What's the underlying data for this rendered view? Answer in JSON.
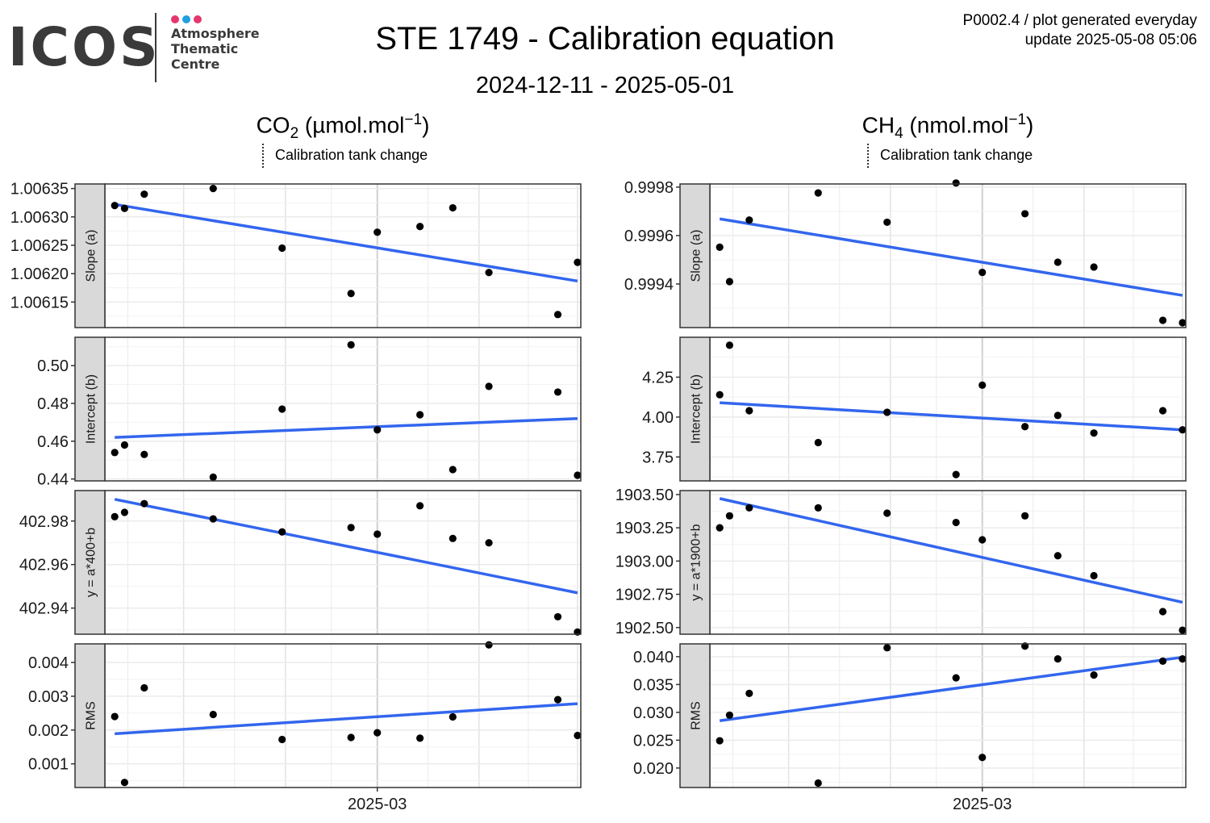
{
  "header": {
    "logo_text": "ICOS",
    "logo_subtext": [
      "Atmosphere",
      "Thematic",
      "Centre"
    ],
    "logo_dot_colors": [
      "#e5366e",
      "#1fa0e0",
      "#e5366e"
    ],
    "title": "STE 1749 - Calibration equation",
    "subtitle": "2024-12-11 - 2025-05-01",
    "meta_line1": "P0002.4 / plot generated everyday",
    "meta_line2": "update  2025-05-08 05:06"
  },
  "columns": [
    {
      "species": "CO",
      "species_sub": "2",
      "units_pre": " (µmol.mol",
      "units_sup": "−1",
      "units_post": ")",
      "legend": "Calibration tank change"
    },
    {
      "species": "CH",
      "species_sub": "4",
      "units_pre": " (nmol.mol",
      "units_sup": "−1",
      "units_post": ")",
      "legend": "Calibration tank change"
    }
  ],
  "colors": {
    "points": "#000000",
    "fit_line": "#3366ee",
    "strip_bg": "#d9d9d9",
    "grid": "#ebebeb",
    "panel_border": "#333333"
  },
  "chart_data": [
    {
      "type": "scatter",
      "gas": "CO2",
      "x_axis": {
        "tick_labels": [
          "2025-03"
        ],
        "tick_values": [
          "2025-03-01"
        ],
        "xlim": [
          "2024-12-08",
          "2025-05-02"
        ]
      },
      "panels": [
        {
          "label": "Slope (a)",
          "yticks": [
            1.00615,
            1.0062,
            1.00625,
            1.0063,
            1.00635
          ],
          "ylim": [
            1.006105,
            1.006358
          ],
          "points": [
            [
              "2024-12-11",
              1.00632
            ],
            [
              "2024-12-14",
              1.006315
            ],
            [
              "2024-12-20",
              1.00634
            ],
            [
              "2025-01-10",
              1.00635
            ],
            [
              "2025-01-31",
              1.006245
            ],
            [
              "2025-02-21",
              1.006165
            ],
            [
              "2025-03-14",
              1.006283
            ],
            [
              "2025-03-01",
              1.006273
            ],
            [
              "2025-03-24",
              1.006316
            ],
            [
              "2025-04-04",
              1.006202
            ],
            [
              "2025-04-25",
              1.006128
            ],
            [
              "2025-05-01",
              1.00622
            ]
          ],
          "fit": [
            [
              "2024-12-11",
              1.006322
            ],
            [
              "2025-05-01",
              1.006187
            ]
          ]
        },
        {
          "label": "Intercept (b)",
          "yticks": [
            0.44,
            0.46,
            0.48,
            0.5
          ],
          "ylim": [
            0.439,
            0.515
          ],
          "points": [
            [
              "2024-12-11",
              0.454
            ],
            [
              "2024-12-14",
              0.458
            ],
            [
              "2024-12-20",
              0.453
            ],
            [
              "2025-01-10",
              0.441
            ],
            [
              "2025-01-31",
              0.477
            ],
            [
              "2025-02-21",
              0.511
            ],
            [
              "2025-03-14",
              0.474
            ],
            [
              "2025-03-01",
              0.466
            ],
            [
              "2025-03-24",
              0.445
            ],
            [
              "2025-04-04",
              0.489
            ],
            [
              "2025-04-25",
              0.486
            ],
            [
              "2025-05-01",
              0.442
            ]
          ],
          "fit": [
            [
              "2024-12-11",
              0.462
            ],
            [
              "2025-05-01",
              0.472
            ]
          ]
        },
        {
          "label": "y = a*400+b",
          "yticks": [
            402.94,
            402.96,
            402.98
          ],
          "ylim": [
            402.928,
            402.994
          ],
          "points": [
            [
              "2024-12-11",
              402.982
            ],
            [
              "2024-12-14",
              402.984
            ],
            [
              "2024-12-20",
              402.988
            ],
            [
              "2025-01-10",
              402.981
            ],
            [
              "2025-01-31",
              402.975
            ],
            [
              "2025-02-21",
              402.977
            ],
            [
              "2025-03-14",
              402.987
            ],
            [
              "2025-03-01",
              402.974
            ],
            [
              "2025-03-24",
              402.972
            ],
            [
              "2025-04-04",
              402.97
            ],
            [
              "2025-04-25",
              402.936
            ],
            [
              "2025-05-01",
              402.929
            ]
          ],
          "fit": [
            [
              "2024-12-11",
              402.99
            ],
            [
              "2025-05-01",
              402.947
            ]
          ]
        },
        {
          "label": "RMS",
          "yticks": [
            0.001,
            0.002,
            0.003,
            0.004
          ],
          "ylim": [
            0.0003,
            0.00455
          ],
          "points": [
            [
              "2024-12-11",
              0.0024
            ],
            [
              "2024-12-14",
              0.00045
            ],
            [
              "2024-12-20",
              0.00325
            ],
            [
              "2025-01-10",
              0.00246
            ],
            [
              "2025-01-31",
              0.00172
            ],
            [
              "2025-02-21",
              0.00178
            ],
            [
              "2025-03-14",
              0.00176
            ],
            [
              "2025-03-01",
              0.00192
            ],
            [
              "2025-03-24",
              0.00239
            ],
            [
              "2025-04-04",
              0.00452
            ],
            [
              "2025-04-25",
              0.0029
            ],
            [
              "2025-05-01",
              0.00184
            ]
          ],
          "fit": [
            [
              "2024-12-11",
              0.00189
            ],
            [
              "2025-05-01",
              0.00278
            ]
          ]
        }
      ]
    },
    {
      "type": "scatter",
      "gas": "CH4",
      "x_axis": {
        "tick_labels": [
          "2025-03"
        ],
        "tick_values": [
          "2025-03-01"
        ],
        "xlim": [
          "2024-12-08",
          "2025-05-02"
        ]
      },
      "panels": [
        {
          "label": "Slope (a)",
          "yticks": [
            0.9994,
            0.9996,
            0.9998
          ],
          "ylim": [
            0.99922,
            0.999813
          ],
          "points": [
            [
              "2024-12-11",
              0.999552
            ],
            [
              "2024-12-14",
              0.99941
            ],
            [
              "2024-12-20",
              0.999664
            ],
            [
              "2025-01-10",
              0.999776
            ],
            [
              "2025-01-31",
              0.999655
            ],
            [
              "2025-02-21",
              0.999817
            ],
            [
              "2025-03-14",
              0.99969
            ],
            [
              "2025-03-01",
              0.999448
            ],
            [
              "2025-03-24",
              0.99949
            ],
            [
              "2025-04-04",
              0.99947
            ],
            [
              "2025-04-25",
              0.99925
            ],
            [
              "2025-05-01",
              0.99924
            ]
          ],
          "fit": [
            [
              "2024-12-11",
              0.999669
            ],
            [
              "2025-05-01",
              0.999353
            ]
          ]
        },
        {
          "label": "Intercept (b)",
          "yticks": [
            3.75,
            4.0,
            4.25
          ],
          "ylim": [
            3.6,
            4.5
          ],
          "points": [
            [
              "2024-12-11",
              4.14
            ],
            [
              "2024-12-14",
              4.45
            ],
            [
              "2024-12-20",
              4.04
            ],
            [
              "2025-01-10",
              3.84
            ],
            [
              "2025-01-31",
              4.03
            ],
            [
              "2025-02-21",
              3.64
            ],
            [
              "2025-03-14",
              3.94
            ],
            [
              "2025-03-01",
              4.2
            ],
            [
              "2025-03-24",
              4.01
            ],
            [
              "2025-04-04",
              3.9
            ],
            [
              "2025-04-25",
              4.04
            ],
            [
              "2025-05-01",
              3.92
            ]
          ],
          "fit": [
            [
              "2024-12-11",
              4.09
            ],
            [
              "2025-05-01",
              3.92
            ]
          ]
        },
        {
          "label": "y = a*1900+b",
          "yticks": [
            1902.5,
            1902.75,
            1903.0,
            1903.25,
            1903.5
          ],
          "ylim": [
            1902.45,
            1903.53
          ],
          "points": [
            [
              "2024-12-11",
              1903.25
            ],
            [
              "2024-12-14",
              1903.34
            ],
            [
              "2024-12-20",
              1903.4
            ],
            [
              "2025-01-10",
              1903.4
            ],
            [
              "2025-01-31",
              1903.36
            ],
            [
              "2025-02-21",
              1903.29
            ],
            [
              "2025-03-14",
              1903.34
            ],
            [
              "2025-03-01",
              1903.16
            ],
            [
              "2025-03-24",
              1903.04
            ],
            [
              "2025-04-04",
              1902.89
            ],
            [
              "2025-04-25",
              1902.62
            ],
            [
              "2025-05-01",
              1902.48
            ]
          ],
          "fit": [
            [
              "2024-12-11",
              1903.47
            ],
            [
              "2025-05-01",
              1902.69
            ]
          ]
        },
        {
          "label": "RMS",
          "yticks": [
            0.02,
            0.025,
            0.03,
            0.035,
            0.04
          ],
          "ylim": [
            0.0165,
            0.0423
          ],
          "points": [
            [
              "2024-12-11",
              0.0249
            ],
            [
              "2024-12-14",
              0.0295
            ],
            [
              "2024-12-20",
              0.0334
            ],
            [
              "2025-01-10",
              0.0173
            ],
            [
              "2025-01-31",
              0.0416
            ],
            [
              "2025-02-21",
              0.0362
            ],
            [
              "2025-03-14",
              0.0419
            ],
            [
              "2025-03-01",
              0.0219
            ],
            [
              "2025-03-24",
              0.0396
            ],
            [
              "2025-04-04",
              0.0367
            ],
            [
              "2025-04-25",
              0.0392
            ],
            [
              "2025-05-01",
              0.0396
            ]
          ],
          "fit": [
            [
              "2024-12-11",
              0.0285
            ],
            [
              "2025-05-01",
              0.0399
            ]
          ]
        }
      ]
    }
  ]
}
